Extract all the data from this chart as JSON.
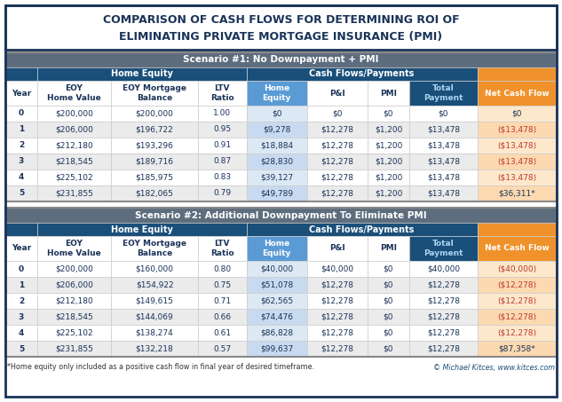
{
  "title_line1": "COMPARISON OF CASH FLOWS FOR DETERMINING ROI OF",
  "title_line2": "ELIMINATING PRIVATE MORTGAGE INSURANCE (PMI)",
  "scenario1_title": "Scenario #1: No Downpayment + PMI",
  "scenario2_title": "Scenario #2: Additional Downpayment To Eliminate PMI",
  "group1_label": "Home Equity",
  "group2_label": "Cash Flows/Payments",
  "col_headers": [
    "Year",
    "EOY\nHome Value",
    "EOY Mortgage\nBalance",
    "LTV\nRatio",
    "Home\nEquity",
    "P&I",
    "PMI",
    "Total\nPayment",
    "Net Cash Flow"
  ],
  "s1_data": [
    [
      "0",
      "$200,000",
      "$200,000",
      "1.00",
      "$0",
      "$0",
      "$0",
      "$0",
      "$0"
    ],
    [
      "1",
      "$206,000",
      "$196,722",
      "0.95",
      "$9,278",
      "$12,278",
      "$1,200",
      "$13,478",
      "($13,478)"
    ],
    [
      "2",
      "$212,180",
      "$193,296",
      "0.91",
      "$18,884",
      "$12,278",
      "$1,200",
      "$13,478",
      "($13,478)"
    ],
    [
      "3",
      "$218,545",
      "$189,716",
      "0.87",
      "$28,830",
      "$12,278",
      "$1,200",
      "$13,478",
      "($13,478)"
    ],
    [
      "4",
      "$225,102",
      "$185,975",
      "0.83",
      "$39,127",
      "$12,278",
      "$1,200",
      "$13,478",
      "($13,478)"
    ],
    [
      "5",
      "$231,855",
      "$182,065",
      "0.79",
      "$49,789",
      "$12,278",
      "$1,200",
      "$13,478",
      "$36,311*"
    ]
  ],
  "s2_data": [
    [
      "0",
      "$200,000",
      "$160,000",
      "0.80",
      "$40,000",
      "$40,000",
      "$0",
      "$40,000",
      "($40,000)"
    ],
    [
      "1",
      "$206,000",
      "$154,922",
      "0.75",
      "$51,078",
      "$12,278",
      "$0",
      "$12,278",
      "($12,278)"
    ],
    [
      "2",
      "$212,180",
      "$149,615",
      "0.71",
      "$62,565",
      "$12,278",
      "$0",
      "$12,278",
      "($12,278)"
    ],
    [
      "3",
      "$218,545",
      "$144,069",
      "0.66",
      "$74,476",
      "$12,278",
      "$0",
      "$12,278",
      "($12,278)"
    ],
    [
      "4",
      "$225,102",
      "$138,274",
      "0.61",
      "$86,828",
      "$12,278",
      "$0",
      "$12,278",
      "($12,278)"
    ],
    [
      "5",
      "$231,855",
      "$132,218",
      "0.57",
      "$99,637",
      "$12,278",
      "$0",
      "$12,278",
      "$87,358*"
    ]
  ],
  "footnote": "*Home equity only included as a positive cash flow in final year of desired timeframe.",
  "credit": "© Michael Kitces, www.kitces.com",
  "colors": {
    "title_bg": "#ffffff",
    "title_text": "#1a3358",
    "outer_border": "#1a3358",
    "scenario_header_bg": "#5d6d7e",
    "scenario_header_text": "#ffffff",
    "group_header_bg": "#1a4f7a",
    "group_header_text": "#ffffff",
    "col_header_bg": "#ffffff",
    "col_header_text": "#1a3358",
    "home_equity_header_bg": "#5b9bd5",
    "home_equity_header_text": "#ffffff",
    "total_payment_header_bg": "#1a4f7a",
    "total_payment_header_text": "#aad4f0",
    "home_equity_data_bg_even": "#dce9f5",
    "home_equity_data_bg_odd": "#c8daf0",
    "net_cash_flow_bg": "#f0922b",
    "net_cash_flow_text": "#ffffff",
    "net_cash_flow_data_even": "#fde8cc",
    "net_cash_flow_data_odd": "#fcd9b0",
    "row_even_bg": "#ffffff",
    "row_odd_bg": "#ebebeb",
    "data_text": "#1a3358",
    "negative_text": "#c0392b",
    "table_border": "#888888",
    "cell_border": "#cccccc"
  }
}
